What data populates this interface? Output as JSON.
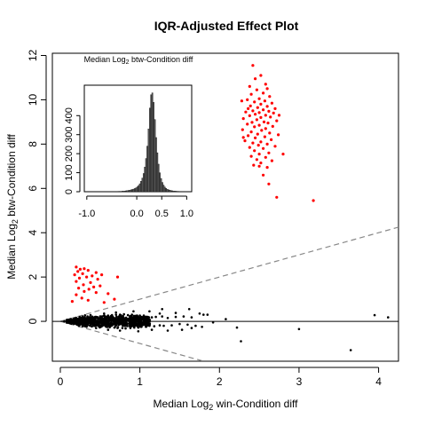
{
  "chart_data": [
    {
      "type": "scatter",
      "title": "IQR-Adjusted Effect Plot",
      "xlabel": "Median  Log",
      "xlabel_sub": "2",
      "xlabel_rest": " win-Condition diff",
      "ylabel": "Median  Log",
      "ylabel_sub": "2",
      "ylabel_rest": " btw-Condition diff",
      "xlim": [
        -0.1,
        4.25
      ],
      "ylim": [
        -1.8,
        12.1
      ],
      "xticks": [
        0,
        1,
        2,
        3,
        4
      ],
      "xtick_labels": [
        "0",
        "1",
        "2",
        "3",
        "4"
      ],
      "yticks": [
        0,
        2,
        4,
        6,
        8,
        10,
        12
      ],
      "ytick_labels": [
        "0",
        "2",
        "4",
        "6",
        "8",
        "10",
        "12"
      ],
      "reference_lines": [
        {
          "style": "dashed",
          "slope": 1,
          "intercept": 0
        },
        {
          "style": "dashed",
          "slope": -1,
          "intercept": 0
        },
        {
          "style": "solid",
          "horizontal": 0
        }
      ],
      "series": [
        {
          "color": "#ff0000",
          "points": [
            [
              2.42,
              11.55
            ],
            [
              2.52,
              11.1
            ],
            [
              2.45,
              10.95
            ],
            [
              2.58,
              10.7
            ],
            [
              2.38,
              10.6
            ],
            [
              2.6,
              10.5
            ],
            [
              2.47,
              10.45
            ],
            [
              2.55,
              10.3
            ],
            [
              2.4,
              10.25
            ],
            [
              2.63,
              10.15
            ],
            [
              2.5,
              10.05
            ],
            [
              2.35,
              10.0
            ],
            [
              2.57,
              9.95
            ],
            [
              2.44,
              9.9
            ],
            [
              2.66,
              9.85
            ],
            [
              2.52,
              9.8
            ],
            [
              2.39,
              9.72
            ],
            [
              2.6,
              9.7
            ],
            [
              2.48,
              9.65
            ],
            [
              2.7,
              9.6
            ],
            [
              2.55,
              9.55
            ],
            [
              2.42,
              9.5
            ],
            [
              2.62,
              9.48
            ],
            [
              2.33,
              9.45
            ],
            [
              2.5,
              9.42
            ],
            [
              2.68,
              9.4
            ],
            [
              2.45,
              9.35
            ],
            [
              2.58,
              9.3
            ],
            [
              2.38,
              9.28
            ],
            [
              2.64,
              9.22
            ],
            [
              2.52,
              9.2
            ],
            [
              2.3,
              9.15
            ],
            [
              2.47,
              9.1
            ],
            [
              2.72,
              9.05
            ],
            [
              2.56,
              9.0
            ],
            [
              2.41,
              8.98
            ],
            [
              2.61,
              8.95
            ],
            [
              2.35,
              8.9
            ],
            [
              2.5,
              8.85
            ],
            [
              2.67,
              8.8
            ],
            [
              2.44,
              8.78
            ],
            [
              2.58,
              8.7
            ],
            [
              2.29,
              8.65
            ],
            [
              2.53,
              8.62
            ],
            [
              2.4,
              8.55
            ],
            [
              2.63,
              8.5
            ],
            [
              2.48,
              8.45
            ],
            [
              2.74,
              8.42
            ],
            [
              2.36,
              8.38
            ],
            [
              2.57,
              8.33
            ],
            [
              2.45,
              8.28
            ],
            [
              2.65,
              8.2
            ],
            [
              2.32,
              8.15
            ],
            [
              2.52,
              8.1
            ],
            [
              2.42,
              8.05
            ],
            [
              2.6,
              8.0
            ],
            [
              2.49,
              7.95
            ],
            [
              2.7,
              7.9
            ],
            [
              2.38,
              7.85
            ],
            [
              2.55,
              7.8
            ],
            [
              2.44,
              7.7
            ],
            [
              2.62,
              7.6
            ],
            [
              2.5,
              7.55
            ],
            [
              2.8,
              7.55
            ],
            [
              2.4,
              7.45
            ],
            [
              2.58,
              7.4
            ],
            [
              2.47,
              7.3
            ],
            [
              2.66,
              7.25
            ],
            [
              2.52,
              7.15
            ],
            [
              2.43,
              7.05
            ],
            [
              2.6,
              6.95
            ],
            [
              2.55,
              6.6
            ],
            [
              2.62,
              6.2
            ],
            [
              2.72,
              5.6
            ],
            [
              3.18,
              5.45
            ],
            [
              2.5,
              7.0
            ],
            [
              2.36,
              9.6
            ],
            [
              2.28,
              9.95
            ],
            [
              2.75,
              9.3
            ],
            [
              2.3,
              8.3
            ]
          ]
        },
        {
          "color": "#ff0000",
          "points": [
            [
              0.2,
              2.45
            ],
            [
              0.25,
              2.35
            ],
            [
              0.3,
              2.38
            ],
            [
              0.22,
              2.25
            ],
            [
              0.35,
              2.3
            ],
            [
              0.45,
              2.2
            ],
            [
              0.18,
              2.1
            ],
            [
              0.28,
              2.15
            ],
            [
              0.4,
              2.05
            ],
            [
              0.52,
              2.1
            ],
            [
              0.24,
              1.95
            ],
            [
              0.33,
              2.0
            ],
            [
              0.47,
              1.9
            ],
            [
              0.72,
              2.0
            ],
            [
              0.2,
              1.8
            ],
            [
              0.38,
              1.75
            ],
            [
              0.29,
              1.65
            ],
            [
              0.5,
              1.6
            ],
            [
              0.42,
              1.55
            ],
            [
              0.23,
              1.5
            ],
            [
              0.36,
              1.45
            ],
            [
              0.3,
              1.35
            ],
            [
              0.45,
              1.3
            ],
            [
              0.6,
              1.25
            ],
            [
              0.2,
              1.2
            ],
            [
              0.15,
              0.9
            ],
            [
              0.35,
              0.95
            ],
            [
              0.55,
              0.85
            ],
            [
              0.68,
              1.0
            ],
            [
              0.27,
              1.05
            ]
          ]
        },
        {
          "color": "#000000",
          "points": [
            [
              0.05,
              0.0
            ],
            [
              0.1,
              0.02
            ],
            [
              0.12,
              -0.03
            ],
            [
              0.15,
              0.05
            ],
            [
              0.18,
              -0.05
            ],
            [
              0.2,
              0.08
            ],
            [
              0.22,
              -0.08
            ],
            [
              0.25,
              0.1
            ],
            [
              0.28,
              -0.1
            ],
            [
              0.3,
              0.12
            ],
            [
              0.32,
              -0.12
            ],
            [
              0.35,
              0.15
            ],
            [
              0.38,
              -0.14
            ],
            [
              0.4,
              0.18
            ],
            [
              0.42,
              -0.17
            ],
            [
              0.45,
              0.2
            ],
            [
              0.48,
              -0.2
            ],
            [
              0.5,
              0.22
            ],
            [
              0.52,
              -0.22
            ],
            [
              0.55,
              0.24
            ],
            [
              0.58,
              -0.25
            ],
            [
              0.6,
              0.26
            ],
            [
              0.62,
              -0.27
            ],
            [
              0.65,
              0.28
            ],
            [
              0.68,
              -0.28
            ],
            [
              0.7,
              0.3
            ],
            [
              0.72,
              -0.3
            ],
            [
              0.75,
              0.3
            ],
            [
              0.78,
              -0.3
            ],
            [
              0.8,
              0.32
            ],
            [
              0.82,
              -0.32
            ],
            [
              0.85,
              0.28
            ],
            [
              0.88,
              -0.3
            ],
            [
              0.9,
              0.3
            ],
            [
              0.93,
              -0.28
            ],
            [
              0.95,
              0.25
            ],
            [
              0.98,
              -0.28
            ],
            [
              1.0,
              0.26
            ],
            [
              1.02,
              -0.25
            ],
            [
              1.05,
              0.22
            ],
            [
              1.08,
              -0.24
            ],
            [
              1.1,
              0.2
            ],
            [
              1.12,
              -0.2
            ],
            [
              1.15,
              0.18
            ],
            [
              1.18,
              -0.22
            ],
            [
              1.2,
              0.2
            ],
            [
              1.25,
              -0.18
            ],
            [
              1.28,
              0.22
            ],
            [
              1.3,
              -0.2
            ],
            [
              1.35,
              0.15
            ],
            [
              1.4,
              -0.18
            ],
            [
              1.45,
              0.2
            ],
            [
              1.5,
              -0.12
            ],
            [
              1.55,
              0.22
            ],
            [
              1.6,
              -0.15
            ],
            [
              1.65,
              0.18
            ],
            [
              1.7,
              -0.2
            ],
            [
              1.28,
              0.55
            ],
            [
              1.12,
              0.45
            ],
            [
              1.45,
              0.38
            ],
            [
              1.62,
              0.55
            ],
            [
              1.75,
              0.35
            ],
            [
              1.8,
              0.3
            ],
            [
              1.85,
              0.3
            ],
            [
              1.53,
              -0.38
            ],
            [
              1.35,
              -0.42
            ],
            [
              1.65,
              -0.3
            ],
            [
              1.78,
              -0.25
            ],
            [
              1.15,
              -0.38
            ],
            [
              2.08,
              0.1
            ],
            [
              2.22,
              -0.28
            ],
            [
              2.27,
              -0.9
            ],
            [
              3.0,
              -0.35
            ],
            [
              3.65,
              -1.3
            ],
            [
              3.95,
              0.28
            ],
            [
              4.12,
              0.18
            ],
            [
              1.92,
              -0.05
            ],
            [
              1.25,
              0.35
            ],
            [
              0.92,
              0.45
            ],
            [
              0.98,
              -0.45
            ],
            [
              0.55,
              0.35
            ],
            [
              0.6,
              -0.38
            ],
            [
              0.38,
              0.28
            ],
            [
              0.45,
              -0.3
            ],
            [
              0.28,
              0.22
            ],
            [
              0.33,
              -0.24
            ],
            [
              0.7,
              0.4
            ],
            [
              0.75,
              -0.42
            ]
          ]
        }
      ]
    },
    {
      "type": "bar",
      "inset": true,
      "title": "Median  Log",
      "title_sub": "2",
      "title_rest": " btw-Condition diff",
      "xlim": [
        -1.05,
        1.1
      ],
      "ylim": [
        0,
        560
      ],
      "xticks": [
        -1.0,
        0.0,
        0.5,
        1.0
      ],
      "xtick_labels": [
        "-1.0",
        "0.0",
        "0.5",
        "1.0"
      ],
      "yticks": [
        0,
        100,
        200,
        300,
        400
      ],
      "ytick_labels": [
        "0",
        "100",
        "200",
        "300",
        "400"
      ],
      "bin_width": 0.025,
      "bin_start": -0.45,
      "values": [
        1,
        1,
        1,
        2,
        2,
        2,
        3,
        3,
        4,
        5,
        6,
        7,
        8,
        10,
        12,
        14,
        17,
        21,
        26,
        33,
        42,
        55,
        72,
        96,
        130,
        175,
        240,
        330,
        440,
        510,
        520,
        470,
        380,
        285,
        205,
        145,
        100,
        70,
        49,
        35,
        25,
        18,
        13,
        10,
        8,
        6,
        5,
        4,
        3,
        3,
        2,
        2,
        1,
        1,
        1,
        1,
        1,
        1
      ]
    }
  ]
}
